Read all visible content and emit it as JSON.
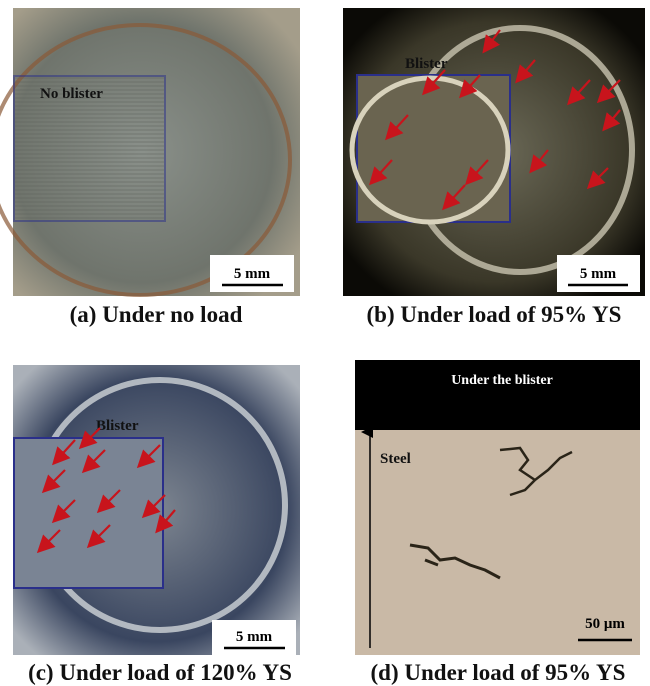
{
  "panels": [
    {
      "label": "No blister",
      "scale_bar": "5 mm",
      "caption": "(a) Under no load"
    },
    {
      "label": "Blister",
      "scale_bar": "5 mm",
      "caption": "(b) Under load of 95% YS"
    },
    {
      "label": "Blister",
      "scale_bar": "5 mm",
      "caption": "(c) Under load of 120% YS"
    },
    {
      "header": "Under the blister",
      "label": "Steel",
      "scale_bar": "50 μm",
      "caption": "(d) Under load of 95% YS"
    }
  ]
}
